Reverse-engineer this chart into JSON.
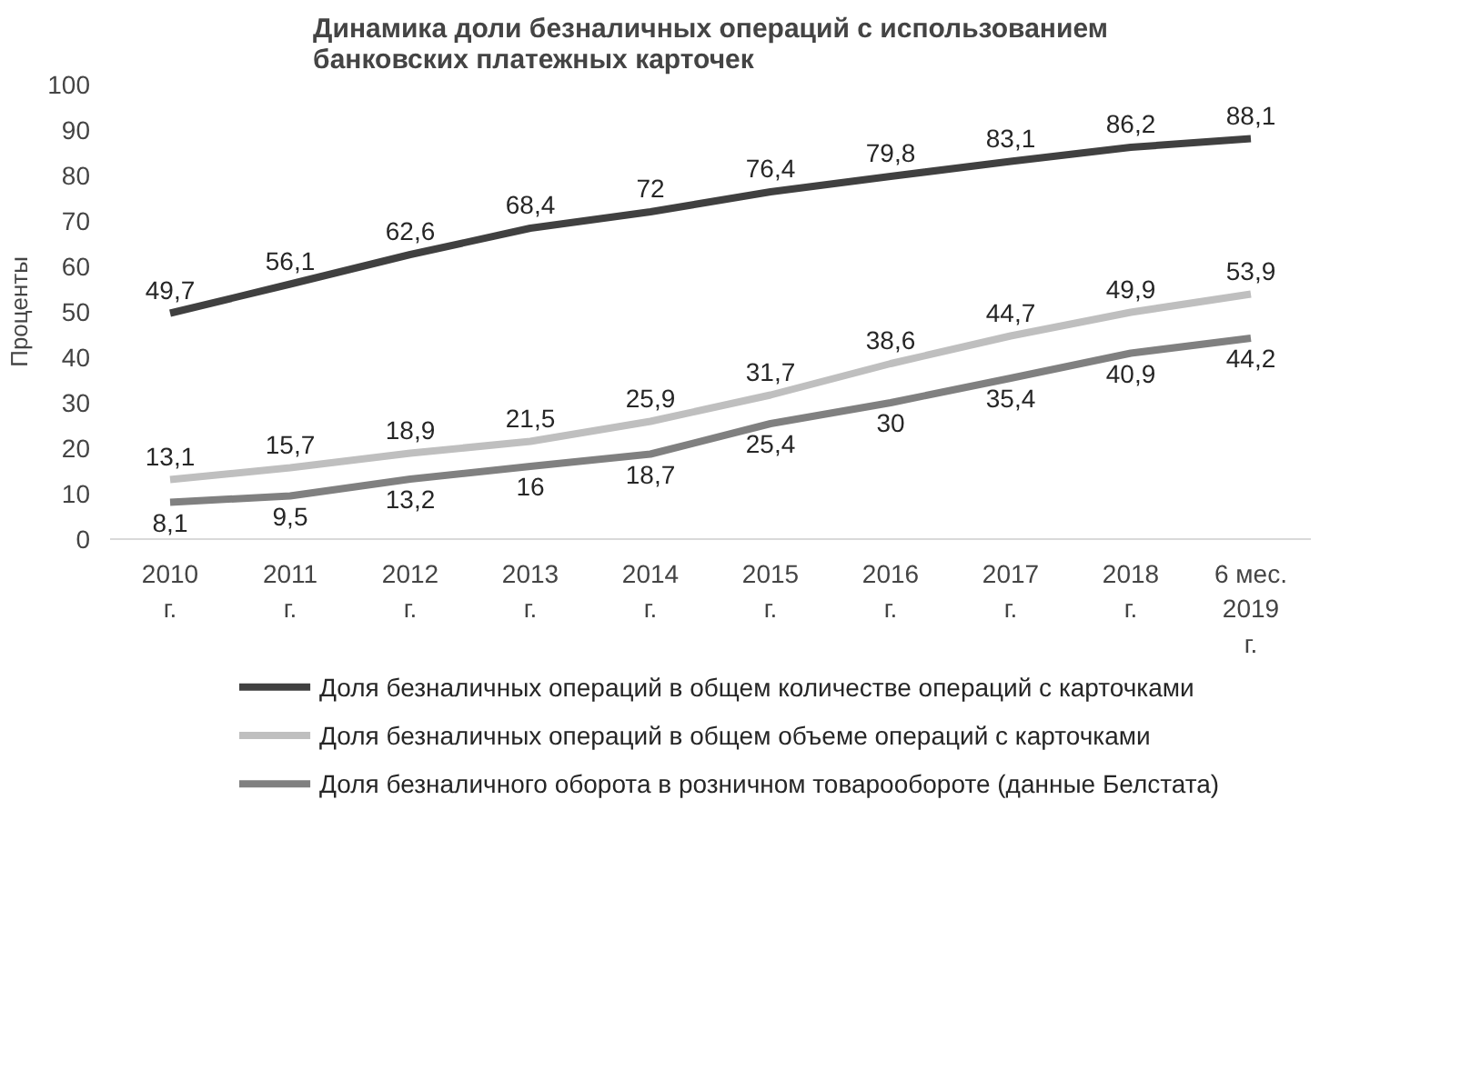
{
  "chart_data": {
    "type": "line",
    "title": "Динамика доли безналичных операций с использованием\nбанковских платежных карточек",
    "ylabel": "Проценты",
    "categories": [
      "2010\nг.",
      "2011\nг.",
      "2012\nг.",
      "2013\nг.",
      "2014\nг.",
      "2015\nг.",
      "2016\nг.",
      "2017\nг.",
      "2018\nг.",
      "6 мес.\n2019\nг."
    ],
    "series": [
      {
        "name": "Доля безналичных операций в общем количестве операций с карточками",
        "color": "#404040",
        "values": [
          49.7,
          56.1,
          62.6,
          68.4,
          72,
          76.4,
          79.8,
          83.1,
          86.2,
          88.1
        ],
        "value_labels": [
          "49,7",
          "56,1",
          "62,6",
          "68,4",
          "72",
          "76,4",
          "79,8",
          "83,1",
          "86,2",
          "88,1"
        ]
      },
      {
        "name": "Доля безналичных операций в общем объеме операций с карточками",
        "color": "#bfbfbf",
        "values": [
          13.1,
          15.7,
          18.9,
          21.5,
          25.9,
          31.7,
          38.6,
          44.7,
          49.9,
          53.9
        ],
        "value_labels": [
          "13,1",
          "15,7",
          "18,9",
          "21,5",
          "25,9",
          "31,7",
          "38,6",
          "44,7",
          "49,9",
          "53,9"
        ]
      },
      {
        "name": "Доля безналичного оборота в розничном товарообороте (данные Белстата)",
        "color": "#808080",
        "values": [
          8.1,
          9.5,
          13.2,
          16,
          18.7,
          25.4,
          30,
          35.4,
          40.9,
          44.2
        ],
        "value_labels": [
          "8,1",
          "9,5",
          "13,2",
          "16",
          "18,7",
          "25,4",
          "30",
          "35,4",
          "40,9",
          "44,2"
        ]
      }
    ],
    "ylim": [
      0,
      100
    ],
    "yticks": [
      0,
      10,
      20,
      30,
      40,
      50,
      60,
      70,
      80,
      90,
      100
    ],
    "legend": "bottom"
  }
}
